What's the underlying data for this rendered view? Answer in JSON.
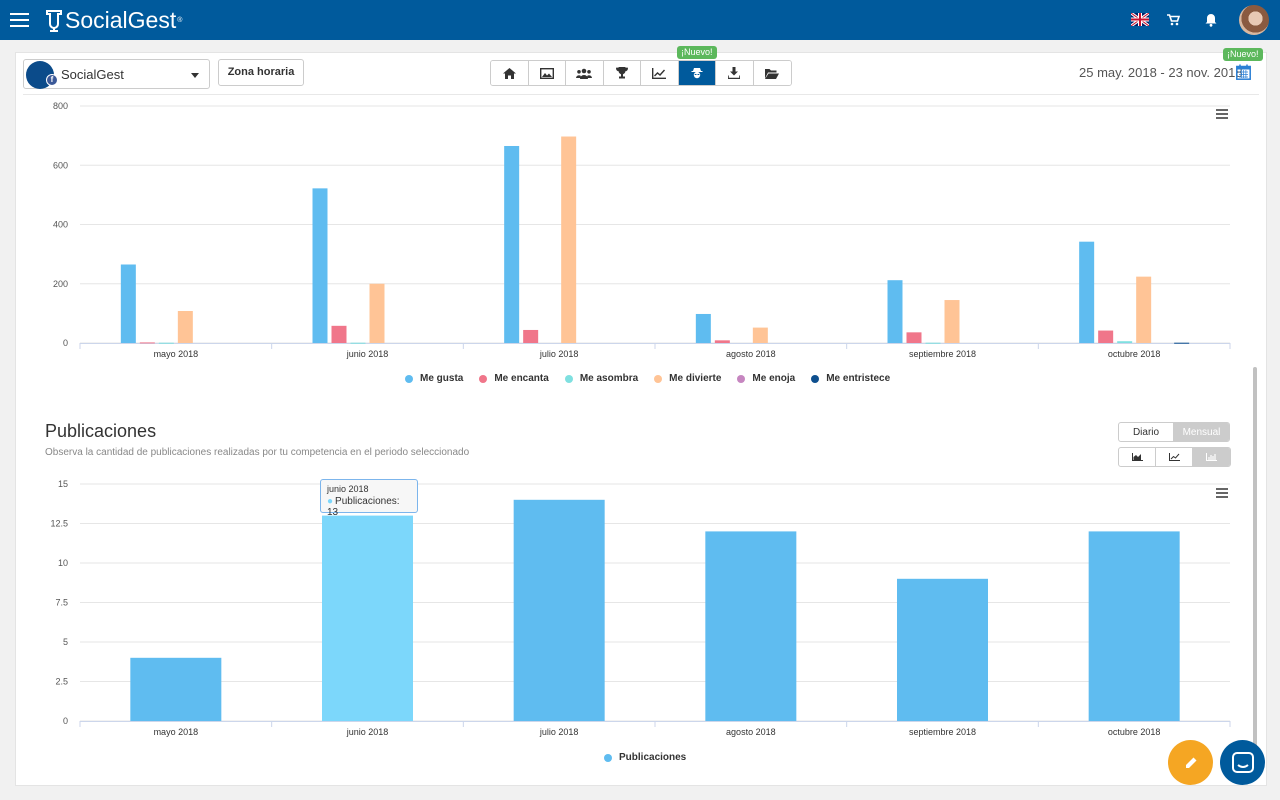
{
  "app": {
    "logo_text": "SocialGest",
    "logo_mark": "®"
  },
  "header_icons": [
    "menu-icon",
    "uk-flag-icon",
    "cart-icon",
    "bell-icon",
    "user-avatar"
  ],
  "account_select": {
    "value": "SocialGest",
    "badge": "f"
  },
  "timezone_button": "Zona horaria",
  "toolbar": {
    "icons": [
      "home-icon",
      "image-icon",
      "users-icon",
      "trophy-icon",
      "chart-line-icon",
      "spy-icon",
      "download-icon",
      "folder-icon"
    ],
    "active": "spy-icon",
    "new_badge": "¡Nuevo!"
  },
  "date_range": "25 may. 2018 - 23 nov. 2018",
  "date_new_badge": "¡Nuevo!",
  "reactions_section": {
    "legend": [
      "Me gusta",
      "Me encanta",
      "Me asombra",
      "Me divierte",
      "Me enoja",
      "Me entristece"
    ]
  },
  "publications_section": {
    "title": "Publicaciones",
    "subtitle": "Observa la cantidad de publicaciones realizadas por tu competencia en el periodo seleccionado",
    "period_toggle": {
      "options": [
        "Diario",
        "Mensual"
      ],
      "selected": "Mensual"
    },
    "chart_type_icons": [
      "area-chart-icon",
      "line-chart-icon",
      "bar-chart-icon"
    ],
    "chart_type_selected": "bar-chart-icon",
    "legend": "Publicaciones",
    "tooltip": {
      "title": "junio 2018",
      "series": "Publicaciones",
      "value": "13"
    }
  },
  "fab": [
    "edit-icon",
    "chat-icon"
  ],
  "chart_data": [
    {
      "type": "bar",
      "categories": [
        "mayo 2018",
        "junio 2018",
        "julio 2018",
        "agosto 2018",
        "septiembre 2018",
        "octubre 2018"
      ],
      "yticks": [
        "0",
        "200",
        "400",
        "600",
        "800"
      ],
      "ylim": [
        0,
        800
      ],
      "series": [
        {
          "name": "Me gusta",
          "color": "#5fbcf0",
          "values": [
            265,
            522,
            665,
            98,
            212,
            342
          ]
        },
        {
          "name": "Me encanta",
          "color": "#f0768a",
          "values": [
            2,
            58,
            44,
            9,
            36,
            42
          ]
        },
        {
          "name": "Me asombra",
          "color": "#7fe0e0",
          "values": [
            1,
            1,
            0,
            0,
            1,
            6
          ]
        },
        {
          "name": "Me divierte",
          "color": "#ffc496",
          "values": [
            108,
            200,
            697,
            52,
            145,
            224
          ]
        },
        {
          "name": "Me enoja",
          "color": "#c686c0",
          "values": [
            0,
            0,
            0,
            0,
            0,
            0
          ]
        },
        {
          "name": "Me entristece",
          "color": "#0e4f8e",
          "values": [
            0,
            0,
            0,
            0,
            0,
            1
          ]
        }
      ],
      "grid": true,
      "legend_position": "bottom"
    },
    {
      "type": "bar",
      "categories": [
        "mayo 2018",
        "junio 2018",
        "julio 2018",
        "agosto 2018",
        "septiembre 2018",
        "octubre 2018"
      ],
      "yticks": [
        "0",
        "2.5",
        "5",
        "7.5",
        "10",
        "12.5",
        "15"
      ],
      "ylim": [
        0,
        15
      ],
      "series": [
        {
          "name": "Publicaciones",
          "color": "#5fbcf0",
          "highlight_color": "#7cd7fb",
          "values": [
            4,
            13,
            14,
            12,
            9,
            12
          ]
        }
      ],
      "highlighted_index": 1,
      "grid": true,
      "legend_position": "bottom"
    }
  ]
}
